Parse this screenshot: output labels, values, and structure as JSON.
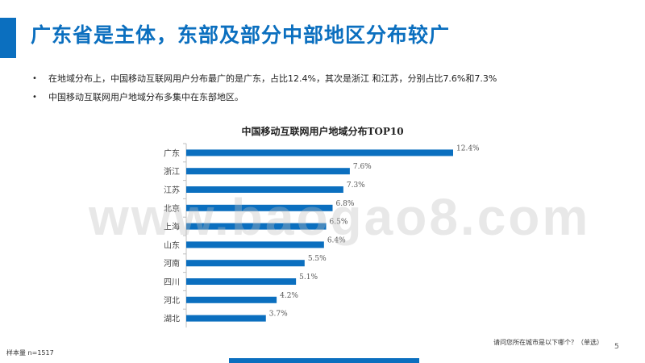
{
  "slide": {
    "title": "广东省是主体，东部及部分中部地区分布较广",
    "bullets": [
      "在地域分布上，中国移动互联网用户分布最广的是广东，占比12.4%，其次是浙江 和江苏，分别占比7.6%和7.3%",
      "中国移动互联网用户地域分布多集中在东部地区。"
    ],
    "bullet_glyph": "•",
    "watermark": "www.baogao8.com",
    "sample_note": "样本量 n=1517",
    "question_note": "请问您所在城市是以下哪个？（单选）",
    "page_number": "5"
  },
  "colors": {
    "accent": "#0b6fbf",
    "bar": "#0b6fbf",
    "axis": "#bfbfbf"
  },
  "chart_data": {
    "type": "bar",
    "orientation": "horizontal",
    "title": "中国移动互联网用户地域分布TOP10",
    "categories": [
      "广东",
      "浙江",
      "江苏",
      "北京",
      "上海",
      "山东",
      "河南",
      "四川",
      "河北",
      "湖北"
    ],
    "values": [
      12.4,
      7.6,
      7.3,
      6.8,
      6.5,
      6.4,
      5.5,
      5.1,
      4.2,
      3.7
    ],
    "value_labels": [
      "12.4%",
      "7.6%",
      "7.3%",
      "6.8%",
      "6.5%",
      "6.4%",
      "5.5%",
      "5.1%",
      "4.2%",
      "3.7%"
    ],
    "xlim": [
      0,
      12.4
    ],
    "xlabel": "",
    "ylabel": "",
    "grid": false,
    "legend": "none"
  }
}
